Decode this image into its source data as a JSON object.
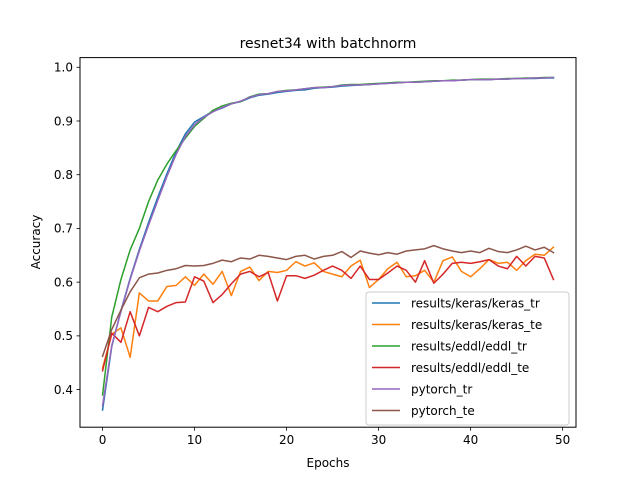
{
  "chart_data": {
    "type": "line",
    "title": "resnet34 with batchnorm",
    "xlabel": "Epochs",
    "ylabel": "Accuracy",
    "xlim": [
      -2.45,
      51.45
    ],
    "ylim": [
      0.33,
      1.018
    ],
    "xticks": [
      0,
      10,
      20,
      30,
      40,
      50
    ],
    "yticks": [
      0.4,
      0.5,
      0.6,
      0.7,
      0.8,
      0.9,
      1.0
    ],
    "xtick_labels": [
      "0",
      "10",
      "20",
      "30",
      "40",
      "50"
    ],
    "ytick_labels": [
      "0.4",
      "0.5",
      "0.6",
      "0.7",
      "0.8",
      "0.9",
      "1.0"
    ],
    "grid": false,
    "legend_position": "lower right",
    "x": [
      0,
      1,
      2,
      3,
      4,
      5,
      6,
      7,
      8,
      9,
      10,
      11,
      12,
      13,
      14,
      15,
      16,
      17,
      18,
      19,
      20,
      21,
      22,
      23,
      24,
      25,
      26,
      27,
      28,
      29,
      30,
      31,
      32,
      33,
      34,
      35,
      36,
      37,
      38,
      39,
      40,
      41,
      42,
      43,
      44,
      45,
      46,
      47,
      48,
      49
    ],
    "series": [
      {
        "name": "results/keras/keras_tr",
        "color": "#1f77b4",
        "values": [
          0.362,
          0.48,
          0.547,
          0.607,
          0.661,
          0.711,
          0.758,
          0.802,
          0.843,
          0.876,
          0.898,
          0.908,
          0.918,
          0.924,
          0.932,
          0.936,
          0.943,
          0.948,
          0.95,
          0.953,
          0.955,
          0.957,
          0.958,
          0.961,
          0.962,
          0.963,
          0.965,
          0.966,
          0.967,
          0.968,
          0.969,
          0.97,
          0.971,
          0.972,
          0.972,
          0.973,
          0.974,
          0.975,
          0.975,
          0.976,
          0.977,
          0.977,
          0.977,
          0.978,
          0.978,
          0.979,
          0.979,
          0.979,
          0.98,
          0.98
        ]
      },
      {
        "name": "results/keras/keras_te",
        "color": "#ff7f0e",
        "values": [
          0.44,
          0.503,
          0.515,
          0.46,
          0.58,
          0.565,
          0.565,
          0.592,
          0.594,
          0.61,
          0.594,
          0.615,
          0.596,
          0.62,
          0.575,
          0.62,
          0.628,
          0.603,
          0.62,
          0.618,
          0.622,
          0.638,
          0.63,
          0.636,
          0.62,
          0.615,
          0.61,
          0.63,
          0.641,
          0.59,
          0.605,
          0.625,
          0.637,
          0.61,
          0.612,
          0.622,
          0.6,
          0.64,
          0.647,
          0.62,
          0.61,
          0.625,
          0.642,
          0.635,
          0.637,
          0.622,
          0.64,
          0.652,
          0.65,
          0.665
        ]
      },
      {
        "name": "results/eddl/eddl_tr",
        "color": "#2ca02c",
        "values": [
          0.39,
          0.535,
          0.605,
          0.66,
          0.7,
          0.75,
          0.79,
          0.82,
          0.845,
          0.868,
          0.89,
          0.905,
          0.92,
          0.928,
          0.933,
          0.936,
          0.945,
          0.95,
          0.951,
          0.955,
          0.957,
          0.958,
          0.96,
          0.962,
          0.963,
          0.964,
          0.967,
          0.968,
          0.968,
          0.969,
          0.97,
          0.971,
          0.972,
          0.972,
          0.973,
          0.974,
          0.975,
          0.975,
          0.976,
          0.976,
          0.977,
          0.978,
          0.978,
          0.978,
          0.979,
          0.979,
          0.98,
          0.98,
          0.981,
          0.981
        ]
      },
      {
        "name": "results/eddl/eddl_te",
        "color": "#d62728",
        "values": [
          0.435,
          0.505,
          0.488,
          0.545,
          0.5,
          0.553,
          0.545,
          0.555,
          0.562,
          0.563,
          0.61,
          0.602,
          0.562,
          0.577,
          0.597,
          0.615,
          0.62,
          0.61,
          0.618,
          0.565,
          0.612,
          0.612,
          0.607,
          0.613,
          0.622,
          0.63,
          0.622,
          0.607,
          0.63,
          0.605,
          0.605,
          0.617,
          0.63,
          0.622,
          0.6,
          0.64,
          0.598,
          0.615,
          0.635,
          0.637,
          0.635,
          0.638,
          0.642,
          0.63,
          0.625,
          0.648,
          0.63,
          0.648,
          0.645,
          0.605
        ]
      },
      {
        "name": "pytorch_tr",
        "color": "#9467bd",
        "values": [
          0.37,
          0.482,
          0.545,
          0.605,
          0.658,
          0.706,
          0.752,
          0.797,
          0.838,
          0.871,
          0.893,
          0.907,
          0.917,
          0.925,
          0.932,
          0.937,
          0.944,
          0.949,
          0.951,
          0.955,
          0.956,
          0.958,
          0.96,
          0.962,
          0.962,
          0.964,
          0.966,
          0.967,
          0.967,
          0.968,
          0.969,
          0.97,
          0.971,
          0.972,
          0.972,
          0.973,
          0.974,
          0.975,
          0.975,
          0.976,
          0.977,
          0.977,
          0.977,
          0.978,
          0.978,
          0.979,
          0.979,
          0.98,
          0.98,
          0.981
        ]
      },
      {
        "name": "pytorch_te",
        "color": "#8c564b",
        "values": [
          0.462,
          0.512,
          0.548,
          0.582,
          0.608,
          0.615,
          0.617,
          0.622,
          0.625,
          0.631,
          0.63,
          0.631,
          0.635,
          0.641,
          0.638,
          0.645,
          0.643,
          0.65,
          0.648,
          0.645,
          0.642,
          0.648,
          0.65,
          0.643,
          0.648,
          0.65,
          0.657,
          0.646,
          0.658,
          0.654,
          0.651,
          0.655,
          0.652,
          0.658,
          0.66,
          0.662,
          0.668,
          0.662,
          0.658,
          0.655,
          0.658,
          0.655,
          0.663,
          0.657,
          0.655,
          0.66,
          0.667,
          0.66,
          0.665,
          0.655
        ]
      }
    ]
  }
}
